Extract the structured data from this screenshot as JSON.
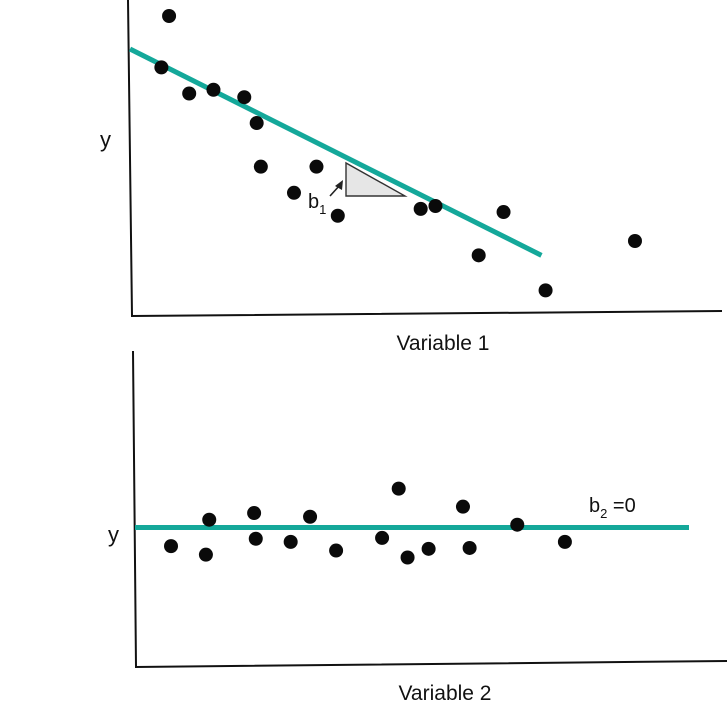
{
  "colors": {
    "fit_line": "#14a89a",
    "points": "#0a0a0a",
    "triangle_fill": "#e6e6e6"
  },
  "chart_data": [
    {
      "type": "scatter",
      "xlabel": "Variable 1",
      "ylabel": "y",
      "xlim": [
        0,
        100
      ],
      "ylim": [
        0,
        100
      ],
      "grid": false,
      "series": [
        {
          "x": [
            6.6,
            5.3,
            10.0,
            14.1,
            19.3,
            21.4,
            22.1,
            27.7,
            31.5,
            35.1,
            49.1,
            51.6,
            58.9,
            63.1,
            70.2,
            85.3
          ],
          "y": [
            100.0,
            82.1,
            73.0,
            74.3,
            71.7,
            62.7,
            47.5,
            38.4,
            47.5,
            30.4,
            32.8,
            33.8,
            16.6,
            31.7,
            4.4,
            21.6
          ]
        }
      ],
      "trend": {
        "x": [
          0,
          69.5
        ],
        "y": [
          88.5,
          16.6
        ]
      },
      "slope_annotation": {
        "base": "b",
        "subscript": "1"
      }
    },
    {
      "type": "scatter",
      "xlabel": "Variable 2",
      "ylabel": "y",
      "xlim": [
        0,
        100
      ],
      "ylim": [
        0,
        100
      ],
      "grid": false,
      "series": [
        {
          "x": [
            6.5,
            13.4,
            12.8,
            21.5,
            21.8,
            28.1,
            31.6,
            36.3,
            44.6,
            47.6,
            49.2,
            53.0,
            59.2,
            60.4,
            69.0,
            77.6
          ],
          "y": [
            32.3,
            50.9,
            26.3,
            55.6,
            37.5,
            35.3,
            53.0,
            29.2,
            38.1,
            72.8,
            24.3,
            30.4,
            60.1,
            31.0,
            47.4,
            35.3
          ]
        }
      ],
      "trend": {
        "x": [
          0,
          100
        ],
        "y": [
          45.4,
          45.4
        ]
      },
      "slope_annotation": {
        "base": "b",
        "subscript": "2",
        "suffix": " =0"
      }
    }
  ]
}
